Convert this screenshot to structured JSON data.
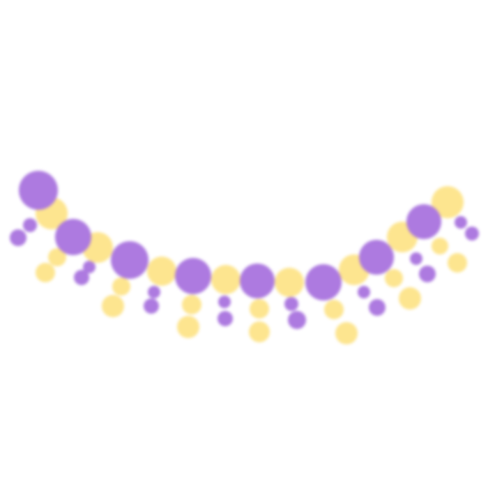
{
  "illustration": {
    "subject": "garland",
    "colors": {
      "purple": "#ad7ae0",
      "yellow": "#fde58f",
      "background": "#ffffff"
    }
  }
}
